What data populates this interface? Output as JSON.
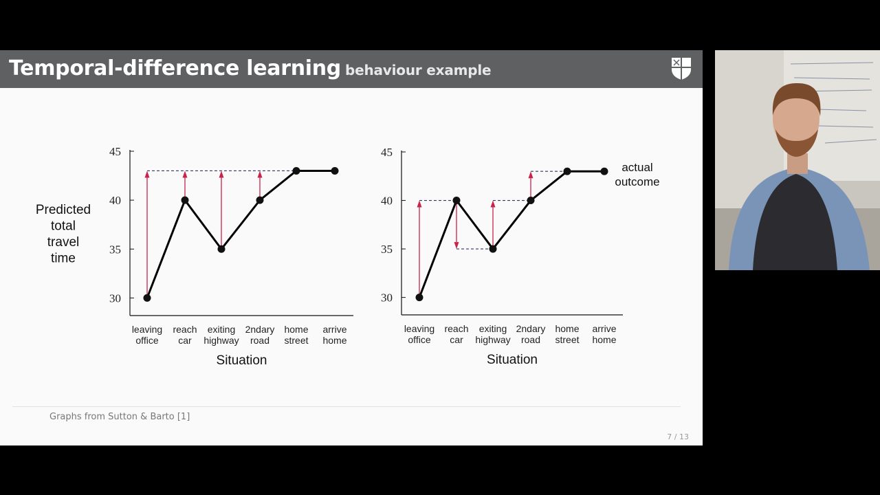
{
  "header": {
    "title": "Temporal-difference learning",
    "subtitle": "behaviour example"
  },
  "footer": {
    "note": "Graphs from Sutton & Barto [1]",
    "page": "7 / 13"
  },
  "colors": {
    "header_bg": "#5e6062",
    "arrow": "#c8234a",
    "line": "#000000",
    "dashed": "#333366"
  },
  "chart_data": [
    {
      "type": "line",
      "title": "",
      "xlabel": "Situation",
      "ylabel": "Predicted total travel time",
      "ylabel_lines": [
        "Predicted",
        "total",
        "travel",
        "time"
      ],
      "categories": [
        [
          "leaving",
          "office"
        ],
        [
          "reach",
          "car"
        ],
        [
          "exiting",
          "highway"
        ],
        [
          "2ndary",
          "road"
        ],
        [
          "home",
          "street"
        ],
        [
          "arrive",
          "home"
        ]
      ],
      "values": [
        30,
        40,
        35,
        40,
        43,
        43
      ],
      "yticks": [
        30,
        35,
        40,
        45
      ],
      "ylim": [
        28.2,
        45
      ],
      "reference_line": 43,
      "annotation": "",
      "arrows": [
        {
          "at": 0,
          "from": 30,
          "to": 43
        },
        {
          "at": 1,
          "from": 40,
          "to": 43
        },
        {
          "at": 2,
          "from": 35,
          "to": 43
        },
        {
          "at": 3,
          "from": 40,
          "to": 43
        }
      ]
    },
    {
      "type": "line",
      "title": "",
      "xlabel": "Situation",
      "ylabel": "",
      "categories": [
        [
          "leaving",
          "office"
        ],
        [
          "reach",
          "car"
        ],
        [
          "exiting",
          "highway"
        ],
        [
          "2ndary",
          "road"
        ],
        [
          "home",
          "street"
        ],
        [
          "arrive",
          "home"
        ]
      ],
      "values": [
        30,
        40,
        35,
        40,
        43,
        43
      ],
      "yticks": [
        30,
        35,
        40,
        45
      ],
      "ylim": [
        28.2,
        45
      ],
      "annotation_lines": [
        "actual",
        "outcome"
      ],
      "dashed_segments": [
        {
          "from": 0,
          "to": 1,
          "y": 40
        },
        {
          "from": 1,
          "to": 2,
          "y": 35
        },
        {
          "from": 2,
          "to": 3,
          "y": 40
        },
        {
          "from": 3,
          "to": 4,
          "y": 43
        }
      ],
      "arrows": [
        {
          "at": 0,
          "from": 30,
          "to": 40
        },
        {
          "at": 1,
          "from": 40,
          "to": 35
        },
        {
          "at": 2,
          "from": 35,
          "to": 40
        },
        {
          "at": 3,
          "from": 40,
          "to": 43
        }
      ]
    }
  ]
}
